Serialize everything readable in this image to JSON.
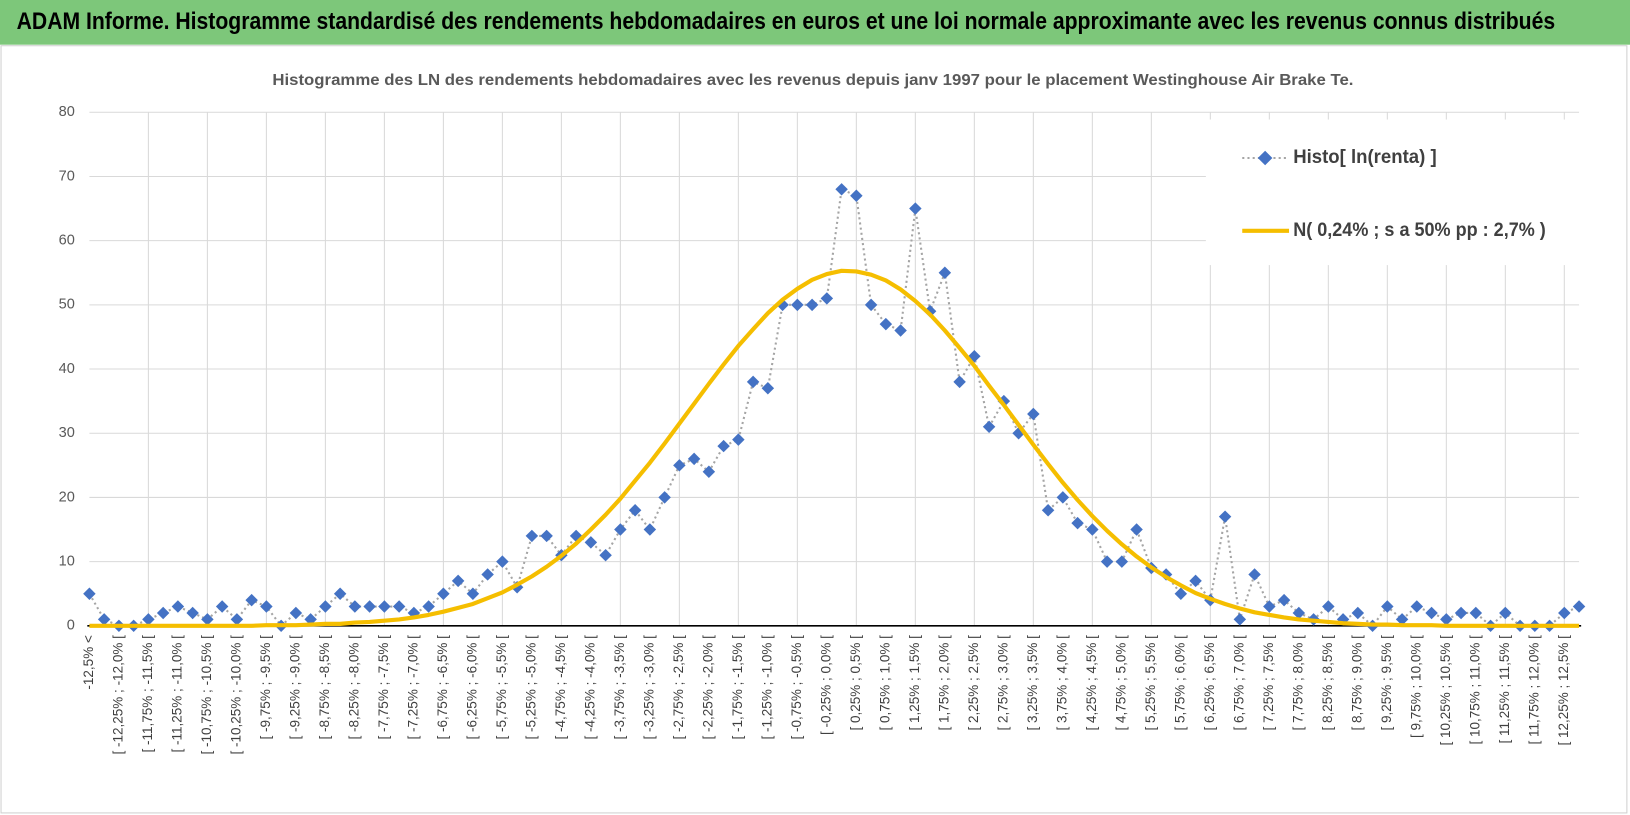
{
  "header": {
    "title": "ADAM Informe. Histogramme standardisé des rendements hebdomadaires en euros et une loi normale approximante avec les revenus connus distribués"
  },
  "chart_data": {
    "type": "line",
    "title": "Histogramme des LN des rendements hebdomadaires avec les revenus depuis janv 1997 pour le placement Westinghouse Air Brake Te.",
    "categories": [
      "-12,5% <",
      null,
      "[ -12,25% ; -12,0% [",
      null,
      "[ -11,75% ; -11,5% [",
      null,
      "[ -11,25% ; -11,0% [",
      null,
      "[ -10,75% ; -10,5% [",
      null,
      "[ -10,25% ; -10,0% [",
      null,
      "[ -9,75% ; -9,5% [",
      null,
      "[ -9,25% ; -9,0% [",
      null,
      "[ -8,75% ; -8,5% [",
      null,
      "[ -8,25% ; -8,0% [",
      null,
      "[ -7,75% ; -7,5% [",
      null,
      "[ -7,25% ; -7,0% [",
      null,
      "[ -6,75% ; -6,5% [",
      null,
      "[ -6,25% ; -6,0% [",
      null,
      "[ -5,75% ; -5,5% [",
      null,
      "[ -5,25% ; -5,0% [",
      null,
      "[ -4,75% ; -4,5% [",
      null,
      "[ -4,25% ; -4,0% [",
      null,
      "[ -3,75% ; -3,5% [",
      null,
      "[ -3,25% ; -3,0% [",
      null,
      "[ -2,75% ; -2,5% [",
      null,
      "[ -2,25% ; -2,0% [",
      null,
      "[ -1,75% ; -1,5% [",
      null,
      "[ -1,25% ; -1,0% [",
      null,
      "[ -0,75% ; -0,5% [",
      null,
      "[ -0,25% ; 0,0% [",
      null,
      "[ 0,25% ; 0,5% [",
      null,
      "[ 0,75% ; 1,0% [",
      null,
      "[ 1,25% ; 1,5% [",
      null,
      "[ 1,75% ; 2,0% [",
      null,
      "[ 2,25% ; 2,5% [",
      null,
      "[ 2,75% ; 3,0% [",
      null,
      "[ 3,25% ; 3,5% [",
      null,
      "[ 3,75% ; 4,0% [",
      null,
      "[ 4,25% ; 4,5% [",
      null,
      "[ 4,75% ; 5,0% [",
      null,
      "[ 5,25% ; 5,5% [",
      null,
      "[ 5,75% ; 6,0% [",
      null,
      "[ 6,25% ; 6,5% [",
      null,
      "[ 6,75% ; 7,0% [",
      null,
      "[ 7,25% ; 7,5% [",
      null,
      "[ 7,75% ; 8,0% [",
      null,
      "[ 8,25% ; 8,5% [",
      null,
      "[ 8,75% ; 9,0% [",
      null,
      "[ 9,25% ; 9,5% [",
      null,
      "[ 9,75% ; 10,0% [",
      null,
      "[ 10,25% ; 10,5% [",
      null,
      "[ 10,75% ; 11,0% [",
      null,
      "[ 11,25% ; 11,5% [",
      null,
      "[ 11,75% ; 12,0% [",
      null,
      "[ 12,25% ; 12,5% [",
      null
    ],
    "series": [
      {
        "name": "Histo[ ln(renta) ]",
        "color": "#4472c4",
        "line_color": "#a5a5a5",
        "marker": "diamond",
        "values": [
          5,
          1,
          0,
          0,
          1,
          2,
          3,
          2,
          1,
          3,
          1,
          4,
          3,
          0,
          2,
          1,
          3,
          5,
          3,
          3,
          3,
          3,
          2,
          3,
          5,
          7,
          5,
          8,
          10,
          6,
          14,
          14,
          11,
          14,
          13,
          11,
          15,
          18,
          15,
          20,
          25,
          26,
          24,
          28,
          29,
          38,
          37,
          50,
          50,
          50,
          51,
          68,
          67,
          50,
          47,
          46,
          65,
          49,
          55,
          38,
          42,
          31,
          35,
          30,
          33,
          18,
          20,
          16,
          15,
          10,
          10,
          15,
          9,
          8,
          5,
          7,
          4,
          17,
          1,
          8,
          3,
          4,
          2,
          1,
          3,
          1,
          2,
          0,
          3,
          1,
          3,
          2,
          1,
          2,
          2,
          0,
          2,
          0,
          0,
          0,
          2,
          3
        ]
      },
      {
        "name": "N( 0,24% ; s a 50% pp : 2,7% )",
        "color": "#f5be00",
        "marker": null,
        "values": [
          0,
          0,
          0,
          0,
          0,
          0,
          0,
          0,
          0,
          0,
          0,
          0,
          0.1,
          0.1,
          0.1,
          0.2,
          0.3,
          0.3,
          0.5,
          0.6,
          0.8,
          1.0,
          1.3,
          1.7,
          2.2,
          2.8,
          3.4,
          4.3,
          5.2,
          6.4,
          7.7,
          9.2,
          10.9,
          12.8,
          15.0,
          17.3,
          19.8,
          22.6,
          25.4,
          28.4,
          31.5,
          34.6,
          37.7,
          40.7,
          43.6,
          46.2,
          48.7,
          50.8,
          52.5,
          53.9,
          54.8,
          55.3,
          55.2,
          54.7,
          53.8,
          52.4,
          50.6,
          48.5,
          46.0,
          43.3,
          40.5,
          37.4,
          34.4,
          31.3,
          28.2,
          25.2,
          22.3,
          19.6,
          17.1,
          14.8,
          12.7,
          10.8,
          9.1,
          7.6,
          6.3,
          5.1,
          4.2,
          3.4,
          2.7,
          2.1,
          1.7,
          1.3,
          1.0,
          0.8,
          0.6,
          0.4,
          0.3,
          0.2,
          0.2,
          0.1,
          0.1,
          0.1,
          0,
          0,
          0,
          0,
          0,
          0,
          0,
          0,
          0,
          0
        ]
      }
    ],
    "ylim": [
      0,
      80
    ],
    "yticks": [
      0,
      10,
      20,
      30,
      40,
      50,
      60,
      70,
      80
    ],
    "grid": true,
    "legend": "top-right"
  }
}
